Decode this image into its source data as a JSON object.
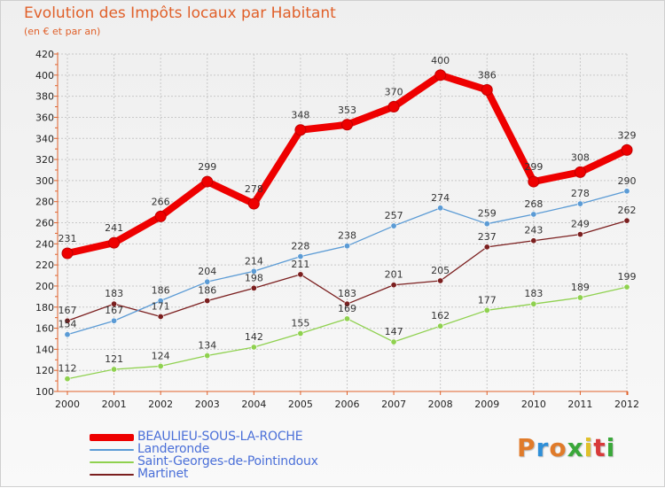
{
  "header": {
    "title": "Evolution des Impôts locaux par Habitant",
    "subtitle": "(en € et par an)"
  },
  "brand": {
    "text": "Proxiti",
    "letters": [
      "P",
      "r",
      "o",
      "x",
      "i",
      "t",
      "i"
    ]
  },
  "colors": {
    "title": "#e0602a",
    "axis": "#e0602a",
    "grid": "#c8c8c8",
    "tick_text": "#222222",
    "legend_text": "#4a6fd8",
    "brand_letters": [
      "#e07b2a",
      "#2f8fd8",
      "#e07b2a",
      "#3aa83a",
      "#e0c02a",
      "#d83a3a",
      "#3aa83a"
    ]
  },
  "chart_data": {
    "type": "line",
    "title": "Evolution des Impôts locaux par Habitant",
    "subtitle": "(en € et par an)",
    "xlabel": "",
    "ylabel": "",
    "x": [
      "2000",
      "2001",
      "2002",
      "2003",
      "2004",
      "2005",
      "2006",
      "2007",
      "2008",
      "2009",
      "2010",
      "2011",
      "2012"
    ],
    "ylim": [
      100,
      420
    ],
    "yticks": [
      "100",
      "120",
      "140",
      "160",
      "180",
      "200",
      "220",
      "240",
      "260",
      "280",
      "300",
      "320",
      "340",
      "360",
      "380",
      "400",
      "420"
    ],
    "grid": true,
    "legend_position": "bottom-left",
    "series": [
      {
        "name": "BEAULIEU-SOUS-LA-ROCHE",
        "color": "#ee0000",
        "values": [
          231,
          241,
          266,
          299,
          278,
          348,
          353,
          370,
          400,
          386,
          299,
          308,
          329
        ],
        "labels": [
          "231",
          "241",
          "266",
          "299",
          "278",
          "348",
          "353",
          "370",
          "400",
          "386",
          "299",
          "308",
          "329"
        ]
      },
      {
        "name": "Landeronde",
        "color": "#5b9bd5",
        "values": [
          154,
          167,
          186,
          204,
          214,
          228,
          238,
          257,
          274,
          259,
          268,
          278,
          290
        ],
        "labels": [
          "154",
          "167",
          "186",
          "204",
          "214",
          "228",
          "238",
          "257",
          "274",
          "259",
          "268",
          "278",
          "290"
        ]
      },
      {
        "name": "Saint-Georges-de-Pointindoux",
        "color": "#8fd14f",
        "values": [
          112,
          121,
          124,
          134,
          142,
          155,
          169,
          147,
          162,
          177,
          183,
          189,
          199
        ],
        "labels": [
          "112",
          "121",
          "124",
          "134",
          "142",
          "155",
          "169",
          "147",
          "162",
          "177",
          "183",
          "189",
          "199"
        ]
      },
      {
        "name": "Martinet",
        "color": "#7b1f1f",
        "values": [
          167,
          183,
          171,
          186,
          198,
          211,
          183,
          201,
          205,
          237,
          243,
          249,
          262
        ],
        "labels": [
          "167",
          "183",
          "171",
          "186",
          "198",
          "211",
          "183",
          "201",
          "205",
          "237",
          "243",
          "249",
          "262"
        ]
      }
    ]
  }
}
